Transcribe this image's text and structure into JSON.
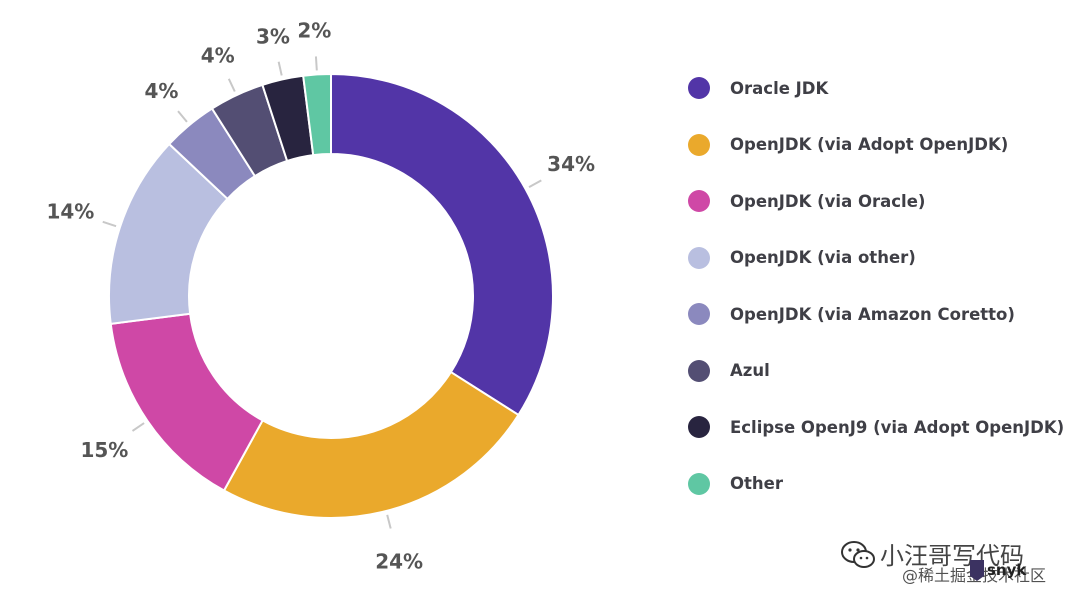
{
  "chart_data": {
    "type": "pie",
    "variant": "donut",
    "start_angle_deg": 0,
    "direction": "clockwise",
    "colors": [
      "#5235a7",
      "#eaa92c",
      "#cf48a6",
      "#b9bfe0",
      "#8b89be",
      "#534e73",
      "#28243f",
      "#5fc7a3"
    ],
    "slices": [
      {
        "label": "Oracle JDK",
        "value": 34,
        "value_label": "34%"
      },
      {
        "label": "OpenJDK (via Adopt OpenJDK)",
        "value": 24,
        "value_label": "24%"
      },
      {
        "label": "OpenJDK (via Oracle)",
        "value": 15,
        "value_label": "15%"
      },
      {
        "label": "OpenJDK (via other)",
        "value": 14,
        "value_label": "14%"
      },
      {
        "label": "OpenJDK (via Amazon Coretto)",
        "value": 4,
        "value_label": "4%"
      },
      {
        "label": "Azul",
        "value": 4,
        "value_label": "4%"
      },
      {
        "label": "Eclipse OpenJ9 (via Adopt OpenJDK)",
        "value": 3,
        "value_label": "3%"
      },
      {
        "label": "Other",
        "value": 2,
        "value_label": "2%"
      }
    ],
    "legend_position": "right"
  },
  "watermark": {
    "line1": "小汪哥写代码",
    "line2": "@稀土掘金技术社区",
    "brand": "snyk"
  }
}
